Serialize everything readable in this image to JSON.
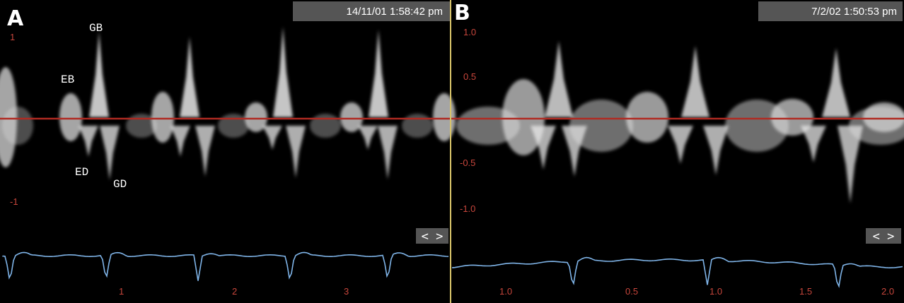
{
  "panels": [
    {
      "label": "A",
      "timestamp": "14/11/01 1:58:42 pm",
      "annotations": [
        "GB",
        "EB",
        "ED",
        "GD"
      ],
      "y_axis": [
        "1",
        "-1"
      ],
      "x_axis": [
        "1",
        "2",
        "3"
      ],
      "scroll": "< >"
    },
    {
      "label": "B",
      "timestamp": "7/2/02 1:50:53 pm",
      "y_axis": [
        "1.0",
        "0.5",
        "-0.5",
        "-1.0"
      ],
      "x_axis": [
        "1.0",
        "0.5",
        "1.0",
        "1.5",
        "2.0"
      ],
      "scroll": "< >"
    }
  ]
}
